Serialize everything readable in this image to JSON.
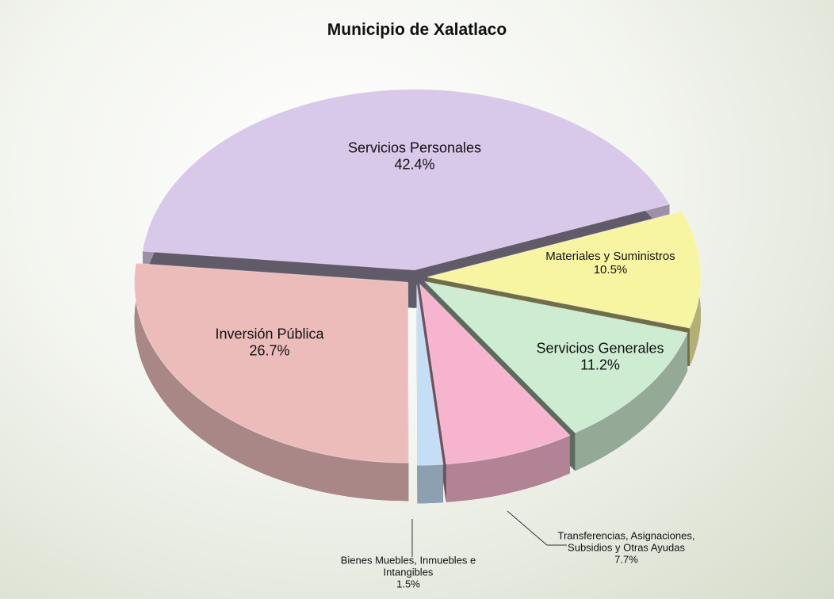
{
  "chart_data": {
    "type": "pie",
    "title": "Municipio de Xalatlaco",
    "categories": [
      "Servicios Personales",
      "Materiales y Suministros",
      "Servicios Generales",
      "Transferencias, Asignaciones, Subsidios y Otras Ayudas",
      "Bienes Muebles, Inmuebles e Intangibles",
      "Inversión Pública"
    ],
    "values": [
      42.4,
      10.5,
      11.2,
      7.7,
      1.5,
      26.7
    ],
    "value_labels": [
      "42.4%",
      "10.5%",
      "11.2%",
      "7.7%",
      "1.5%",
      "26.7%"
    ],
    "colors": [
      "#d8c8ea",
      "#f8f5a2",
      "#cdecd2",
      "#f7b4cf",
      "#c4def5",
      "#ecbcbb"
    ]
  }
}
